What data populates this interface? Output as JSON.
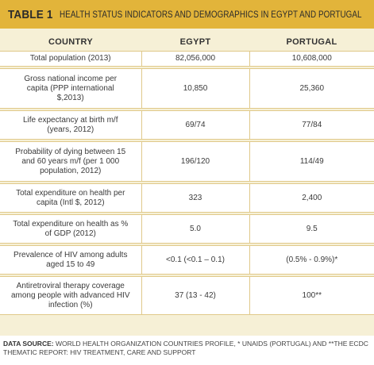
{
  "title": {
    "label": "TABLE 1",
    "text": "HEALTH STATUS INDICATORS AND DEMOGRAPHICS IN EGYPT AND PORTUGAL"
  },
  "columns": [
    "COUNTRY",
    "EGYPT",
    "PORTUGAL"
  ],
  "rows": [
    {
      "indicator": "Total population (2013)",
      "egypt": "82,056,000",
      "portugal": "10,608,000"
    },
    {
      "indicator": "Gross national income per capita (PPP international $,2013)",
      "egypt": "10,850",
      "portugal": "25,360"
    },
    {
      "indicator": "Life expectancy at birth m/f (years, 2012)",
      "egypt": "69/74",
      "portugal": "77/84"
    },
    {
      "indicator": "Probability of dying between 15 and 60 years m/f (per 1 000 population, 2012)",
      "egypt": "196/120",
      "portugal": "114/49"
    },
    {
      "indicator": "Total expenditure on health per capita (Intl $, 2012)",
      "egypt": "323",
      "portugal": "2,400"
    },
    {
      "indicator": "Total expenditure on health as % of GDP (2012)",
      "egypt": "5.0",
      "portugal": "9.5"
    },
    {
      "indicator": "Prevalence of HIV among adults aged 15 to 49",
      "egypt": "<0.1 (<0.1 – 0.1)",
      "portugal": "(0.5% - 0.9%)*"
    },
    {
      "indicator": "Antiretroviral therapy coverage among people with advanced HIV infection (%)",
      "egypt": "37 (13 - 42)",
      "portugal": "100**"
    }
  ],
  "source": {
    "label": "DATA SOURCE:",
    "text": "WORLD HEALTH ORGANIZATION COUNTRIES PROFILE, * UNAIDS (PORTUGAL) AND **THE ECDC THEMATIC REPORT: HIV TREATMENT, CARE AND SUPPORT"
  }
}
